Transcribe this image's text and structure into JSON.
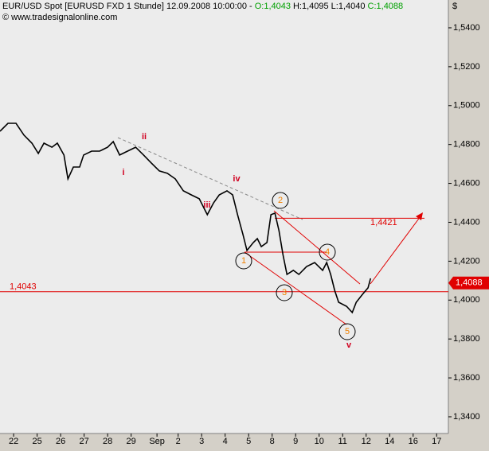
{
  "chart_data": {
    "type": "line",
    "header": [
      "EUR/USD Spot [EURUSD FXD  1 Stunde] 12.09.2008 10:00:00 - ",
      "O:1,4043",
      "H:1,4095 L:1,4040",
      "C:1,4088"
    ],
    "copyright": "© www.tradesignalonline.com",
    "currency": "$",
    "color": "#000000",
    "x": [
      -0.58,
      -0.24,
      0.1,
      0.44,
      0.78,
      1.05,
      1.29,
      1.63,
      1.86,
      2.14,
      2.31,
      2.54,
      2.81,
      2.98,
      3.32,
      3.66,
      4,
      4.24,
      4.51,
      4.85,
      5.19,
      5.53,
      5.86,
      6.2,
      6.54,
      6.88,
      7.22,
      7.56,
      7.9,
      8.24,
      8.51,
      8.75,
      9.08,
      9.32,
      9.53,
      9.76,
      9.93,
      10.2,
      10.37,
      10.54,
      10.78,
      10.95,
      11.12,
      11.29,
      11.46,
      11.63,
      11.9,
      12.14,
      12.47,
      12.81,
      13.15,
      13.32,
      13.49,
      13.66,
      13.83,
      14.17,
      14.41,
      14.58,
      14.85,
      15.08,
      15.19
    ],
    "values": [
      1.4868,
      1.4909,
      1.4909,
      1.4848,
      1.4807,
      1.4754,
      1.4807,
      1.4786,
      1.4807,
      1.4746,
      1.4623,
      1.4684,
      1.4684,
      1.4746,
      1.4766,
      1.4766,
      1.4786,
      1.4815,
      1.4746,
      1.4766,
      1.4786,
      1.4746,
      1.4705,
      1.4664,
      1.4652,
      1.4623,
      1.4562,
      1.4541,
      1.4521,
      1.4439,
      1.45,
      1.4541,
      1.4562,
      1.4541,
      1.4439,
      1.4337,
      1.4255,
      1.4296,
      1.4316,
      1.4275,
      1.4296,
      1.4439,
      1.4447,
      1.4357,
      1.4234,
      1.4132,
      1.4153,
      1.4132,
      1.4173,
      1.4193,
      1.4153,
      1.4193,
      1.4132,
      1.405,
      1.3989,
      1.3968,
      1.3936,
      1.3989,
      1.403,
      1.4063,
      1.4112
    ],
    "xlim": [
      -0.58,
      18.5
    ],
    "xticks": [
      {
        "value": 0,
        "label": "22"
      },
      {
        "value": 1,
        "label": "25"
      },
      {
        "value": 2,
        "label": "26"
      },
      {
        "value": 3,
        "label": "27"
      },
      {
        "value": 4,
        "label": "28"
      },
      {
        "value": 5,
        "label": "29"
      },
      {
        "value": 6.1,
        "label": "Sep"
      },
      {
        "value": 7,
        "label": "2"
      },
      {
        "value": 8,
        "label": "3"
      },
      {
        "value": 9,
        "label": "4"
      },
      {
        "value": 10,
        "label": "5"
      },
      {
        "value": 11,
        "label": "8"
      },
      {
        "value": 12,
        "label": "9"
      },
      {
        "value": 13,
        "label": "10"
      },
      {
        "value": 14,
        "label": "11"
      },
      {
        "value": 15,
        "label": "12"
      },
      {
        "value": 16,
        "label": "14"
      },
      {
        "value": 17,
        "label": "16"
      },
      {
        "value": 18,
        "label": "17"
      }
    ],
    "ylim": [
      1.3314,
      1.5543
    ],
    "yticks": [
      {
        "value": 1.34,
        "label": "1,3400"
      },
      {
        "value": 1.36,
        "label": "1,3600"
      },
      {
        "value": 1.38,
        "label": "1,3800"
      },
      {
        "value": 1.4,
        "label": "1,4000"
      },
      {
        "value": 1.42,
        "label": "1,4200"
      },
      {
        "value": 1.44,
        "label": "1,4400"
      },
      {
        "value": 1.46,
        "label": "1,4600"
      },
      {
        "value": 1.48,
        "label": "1,4800"
      },
      {
        "value": 1.5,
        "label": "1,5000"
      },
      {
        "value": 1.52,
        "label": "1,5200"
      },
      {
        "value": 1.54,
        "label": "1,5400"
      }
    ],
    "levels": [
      {
        "value": 1.4043,
        "label": "1,4043"
      },
      {
        "value": 1.4421,
        "label": "1,4421"
      }
    ],
    "last_price": {
      "value": 1.4088,
      "label": "1,4088"
    },
    "wave_labels": [
      "i",
      "ii",
      "iii",
      "iv",
      "v"
    ],
    "count_labels": [
      "1",
      "2",
      "3",
      "4",
      "5"
    ]
  }
}
